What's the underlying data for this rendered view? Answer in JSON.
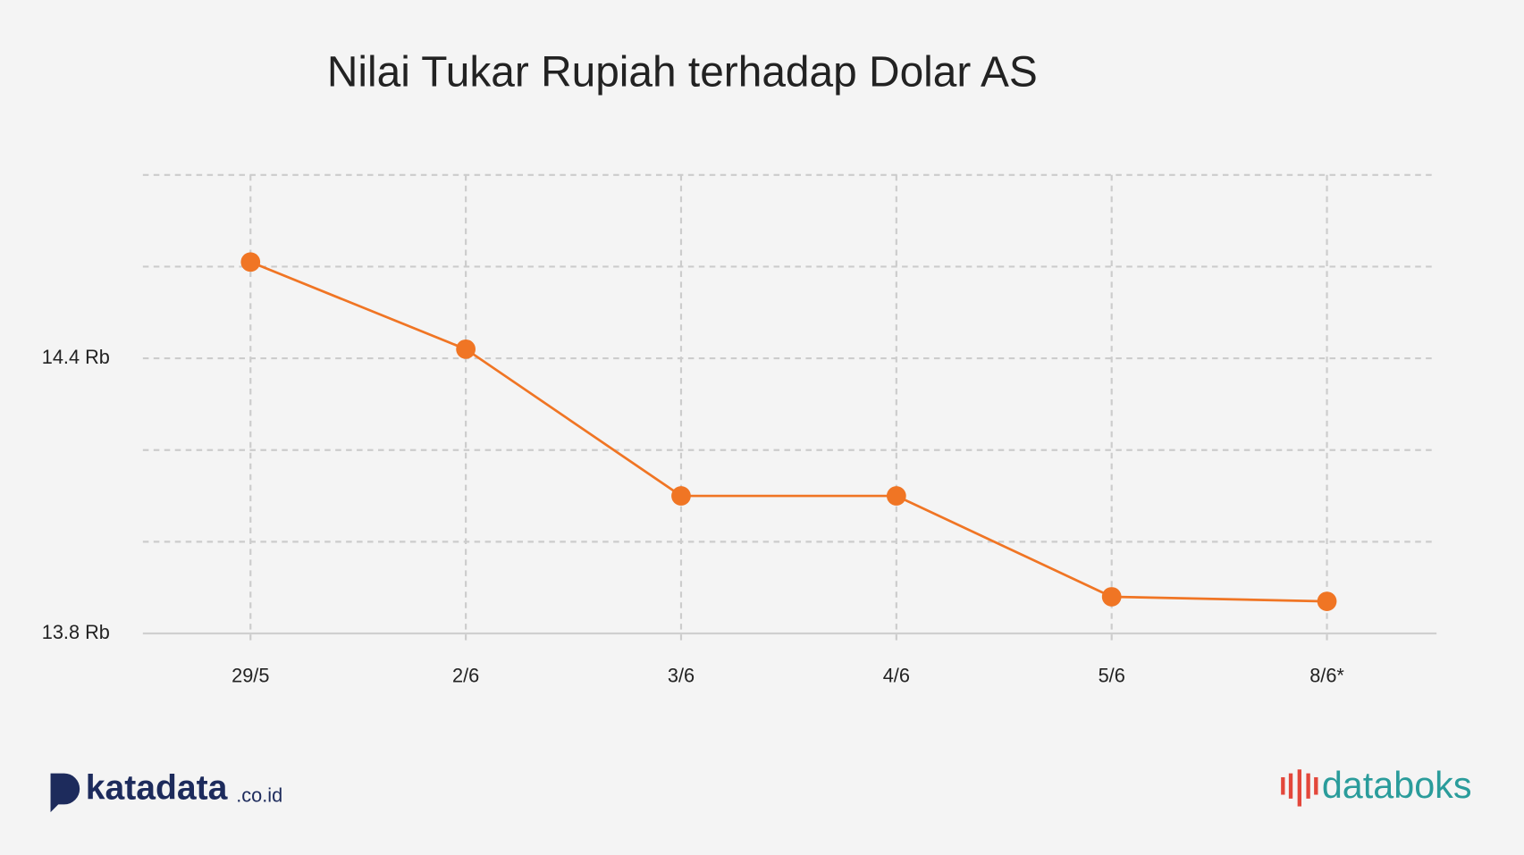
{
  "chart_data": {
    "type": "line",
    "title": "Nilai Tukar Rupiah terhadap Dolar AS",
    "categories": [
      "29/5",
      "2/6",
      "3/6",
      "4/6",
      "5/6",
      "8/6*"
    ],
    "series": [
      {
        "name": "Rupiah",
        "color": "#f07524",
        "values": [
          14.61,
          14.42,
          14.1,
          14.1,
          13.88,
          13.87
        ]
      }
    ],
    "ylim": [
      13.8,
      14.8
    ],
    "yticks": [
      {
        "value": 13.8,
        "label": "13.8 Rb"
      },
      {
        "value": 14.0,
        "label": null
      },
      {
        "value": 14.2,
        "label": null
      },
      {
        "value": 14.4,
        "label": "14.4 Rb"
      },
      {
        "value": 14.6,
        "label": null
      },
      {
        "value": 14.8,
        "label": null
      }
    ],
    "grid": true
  },
  "branding": {
    "left": "katadata",
    "left_suffix": ".co.id",
    "right": "databoks"
  }
}
